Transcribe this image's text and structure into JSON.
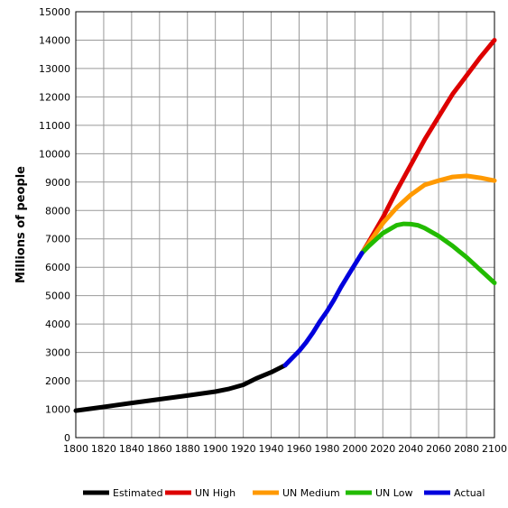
{
  "chart_data": {
    "type": "line",
    "title": "",
    "xlabel": "",
    "ylabel": "Millions of people",
    "xlim": [
      1800,
      2100
    ],
    "ylim": [
      0,
      15000
    ],
    "x_ticks": [
      1800,
      1820,
      1840,
      1860,
      1880,
      1900,
      1920,
      1940,
      1960,
      1980,
      2000,
      2020,
      2040,
      2060,
      2080,
      2100
    ],
    "y_ticks": [
      0,
      1000,
      2000,
      3000,
      4000,
      5000,
      6000,
      7000,
      8000,
      9000,
      10000,
      11000,
      12000,
      13000,
      14000,
      15000
    ],
    "grid": true,
    "legend_position": "bottom",
    "series": [
      {
        "name": "Estimated",
        "color": "#000000",
        "x": [
          1800,
          1820,
          1840,
          1860,
          1880,
          1900,
          1910,
          1920,
          1930,
          1940,
          1950
        ],
        "y": [
          950,
          1080,
          1220,
          1350,
          1480,
          1620,
          1720,
          1860,
          2100,
          2300,
          2550
        ]
      },
      {
        "name": "UN High",
        "color": "#dd0000",
        "x": [
          2005,
          2010,
          2020,
          2030,
          2040,
          2050,
          2060,
          2070,
          2080,
          2090,
          2100
        ],
        "y": [
          6500,
          6900,
          7750,
          8700,
          9600,
          10500,
          11300,
          12100,
          12750,
          13400,
          14000
        ]
      },
      {
        "name": "UN Medium",
        "color": "#ff9900",
        "x": [
          2005,
          2010,
          2020,
          2030,
          2040,
          2050,
          2060,
          2070,
          2080,
          2090,
          2100
        ],
        "y": [
          6500,
          6850,
          7550,
          8100,
          8550,
          8900,
          9050,
          9180,
          9220,
          9150,
          9050
        ]
      },
      {
        "name": "UN Low",
        "color": "#22bb00",
        "x": [
          2005,
          2010,
          2020,
          2030,
          2035,
          2040,
          2045,
          2050,
          2060,
          2070,
          2080,
          2090,
          2100
        ],
        "y": [
          6500,
          6750,
          7200,
          7480,
          7530,
          7520,
          7480,
          7380,
          7100,
          6750,
          6350,
          5900,
          5450
        ]
      },
      {
        "name": "Actual",
        "color": "#0000dd",
        "x": [
          1950,
          1955,
          1960,
          1965,
          1970,
          1975,
          1980,
          1985,
          1990,
          1995,
          2000,
          2005
        ],
        "y": [
          2550,
          2800,
          3050,
          3350,
          3700,
          4100,
          4450,
          4850,
          5300,
          5700,
          6100,
          6500
        ]
      }
    ]
  }
}
